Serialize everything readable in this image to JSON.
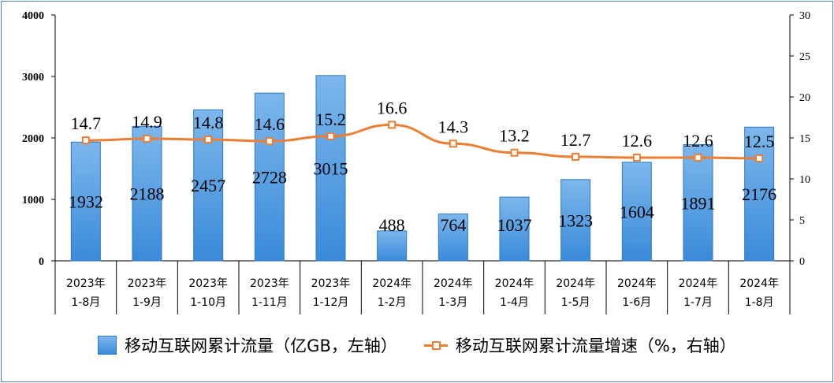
{
  "chart_data": {
    "type": "bar",
    "categories": [
      [
        "2023年",
        "1-8月"
      ],
      [
        "2023年",
        "1-9月"
      ],
      [
        "2023年",
        "1-10月"
      ],
      [
        "2023年",
        "1-11月"
      ],
      [
        "2023年",
        "1-12月"
      ],
      [
        "2024年",
        "1-2月"
      ],
      [
        "2024年",
        "1-3月"
      ],
      [
        "2024年",
        "1-4月"
      ],
      [
        "2024年",
        "1-5月"
      ],
      [
        "2024年",
        "1-6月"
      ],
      [
        "2024年",
        "1-7月"
      ],
      [
        "2024年",
        "1-8月"
      ]
    ],
    "series": [
      {
        "name": "移动互联网累计流量（亿GB，左轴）",
        "type": "bar",
        "axis": "left",
        "values": [
          1932,
          2188,
          2457,
          2728,
          3015,
          488,
          764,
          1037,
          1323,
          1604,
          1891,
          2176
        ],
        "color": "#4a90d9"
      },
      {
        "name": "移动互联网累计流量增速（%，右轴）",
        "type": "line",
        "axis": "right",
        "values": [
          14.7,
          14.9,
          14.8,
          14.6,
          15.2,
          16.6,
          14.3,
          13.2,
          12.7,
          12.6,
          12.6,
          12.5
        ],
        "color": "#ed7d31"
      }
    ],
    "y_left": {
      "min": 0,
      "max": 4000,
      "ticks": [
        0,
        1000,
        2000,
        3000,
        4000
      ]
    },
    "y_right": {
      "min": 0,
      "max": 30,
      "ticks": [
        0,
        5,
        10,
        15,
        20,
        25,
        30
      ]
    },
    "legend_position": "bottom",
    "grid": false
  }
}
